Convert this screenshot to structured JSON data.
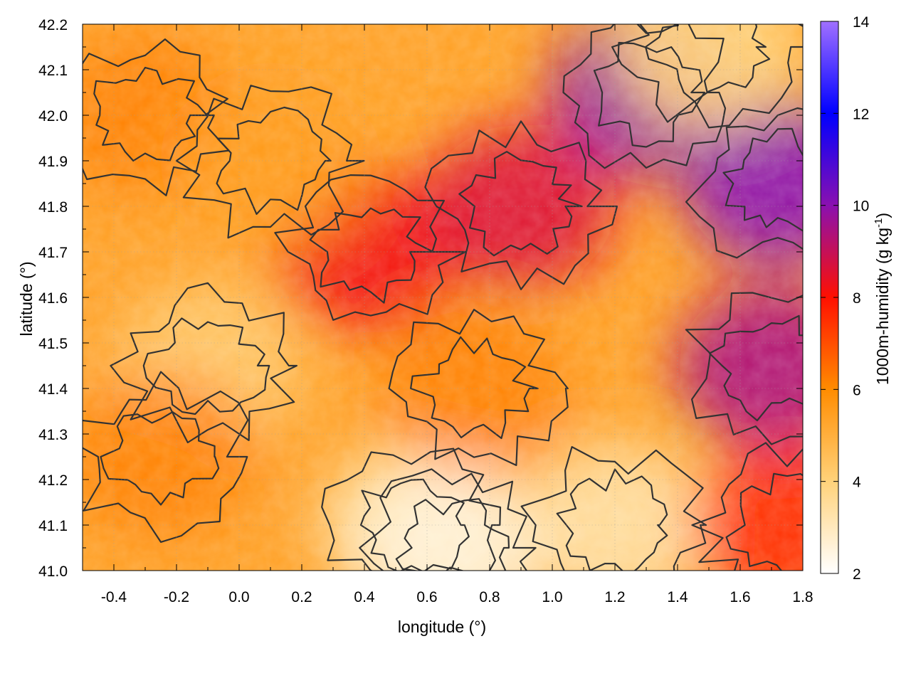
{
  "chart_data": {
    "type": "heatmap",
    "title": "",
    "xlabel": "longitude (°)",
    "ylabel": "latitude (°)",
    "colorbar_label_html": "1000m-humidity (g kg",
    "colorbar_label_sup": "-1",
    "colorbar_label_tail": ")",
    "xlim": [
      -0.5,
      1.8
    ],
    "ylim": [
      41.0,
      42.2
    ],
    "x_ticks": [
      -0.4,
      -0.2,
      0.0,
      0.2,
      0.4,
      0.6,
      0.8,
      1.0,
      1.2,
      1.4,
      1.6,
      1.8
    ],
    "x_tick_labels": [
      "-0.4",
      "-0.2",
      "0.0",
      "0.2",
      "0.4",
      "0.6",
      "0.8",
      "1.0",
      "1.2",
      "1.4",
      "1.6",
      "1.8"
    ],
    "y_ticks": [
      41.0,
      41.1,
      41.2,
      41.3,
      41.4,
      41.5,
      41.6,
      41.7,
      41.8,
      41.9,
      42.0,
      42.1,
      42.2
    ],
    "y_tick_labels": [
      "41.0",
      "41.1",
      "41.2",
      "41.3",
      "41.4",
      "41.5",
      "41.6",
      "41.7",
      "41.8",
      "41.9",
      "42.0",
      "42.1",
      "42.2"
    ],
    "grid": true,
    "colorbar": {
      "range": [
        2,
        14
      ],
      "ticks": [
        2,
        4,
        6,
        8,
        10,
        12,
        14
      ],
      "tick_labels": [
        "2",
        "4",
        "6",
        "8",
        "10",
        "12",
        "14"
      ],
      "colormap": [
        {
          "value": 2,
          "color": "#ffffff"
        },
        {
          "value": 4,
          "color": "#ffd27a"
        },
        {
          "value": 6,
          "color": "#ff8c00"
        },
        {
          "value": 8,
          "color": "#ff1000"
        },
        {
          "value": 10,
          "color": "#8a10b0"
        },
        {
          "value": 12,
          "color": "#0000ff"
        },
        {
          "value": 14,
          "color": "#a070ff"
        }
      ]
    },
    "contours": true,
    "contour_color": "#333333",
    "regions": [
      {
        "lon": -0.1,
        "lat": 41.45,
        "humidity": 4.3
      },
      {
        "lon": 0.55,
        "lat": 41.1,
        "humidity": 3.5
      },
      {
        "lon": 0.68,
        "lat": 41.05,
        "humidity": 2.6
      },
      {
        "lon": 1.2,
        "lat": 41.1,
        "humidity": 3.4
      },
      {
        "lon": 0.42,
        "lat": 41.7,
        "humidity": 8.2
      },
      {
        "lon": 0.9,
        "lat": 41.8,
        "humidity": 8.6
      },
      {
        "lon": 1.3,
        "lat": 42.05,
        "humidity": 9.8
      },
      {
        "lon": 1.72,
        "lat": 41.85,
        "humidity": 10.0
      },
      {
        "lon": 1.7,
        "lat": 41.45,
        "humidity": 9.4
      },
      {
        "lon": 1.75,
        "lat": 41.1,
        "humidity": 7.6
      },
      {
        "lon": -0.3,
        "lat": 42.0,
        "humidity": 6.2
      },
      {
        "lon": 0.1,
        "lat": 41.9,
        "humidity": 5.6
      },
      {
        "lon": -0.25,
        "lat": 41.25,
        "humidity": 6.2
      },
      {
        "lon": 1.5,
        "lat": 42.15,
        "humidity": 4.0
      },
      {
        "lon": 0.75,
        "lat": 41.4,
        "humidity": 6.2
      }
    ]
  }
}
